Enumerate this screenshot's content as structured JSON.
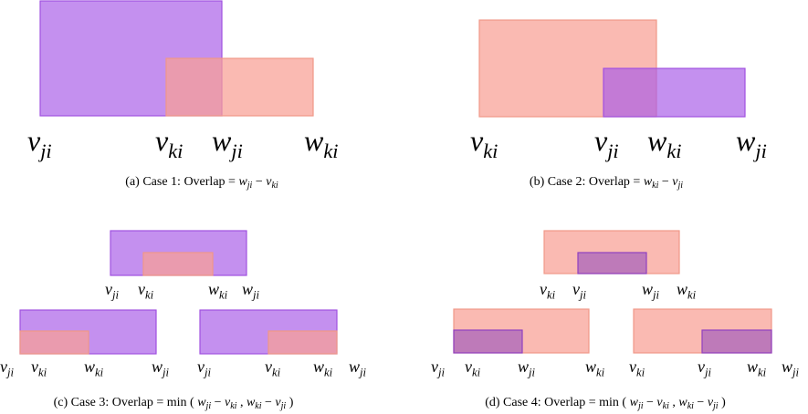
{
  "panels": [
    {
      "labels": [
        {
          "base": "v",
          "sub": "ji"
        },
        {
          "base": "v",
          "sub": "ki"
        },
        {
          "base": "w",
          "sub": "ji"
        },
        {
          "base": "w",
          "sub": "ki"
        }
      ],
      "caption": {
        "prefix": "(a) Case 1: Overlap =",
        "formula": [
          {
            "var": "w",
            "sub": "ji"
          },
          {
            "op": "−"
          },
          {
            "var": "v",
            "sub": "ki"
          }
        ]
      }
    },
    {
      "labels": [
        {
          "base": "v",
          "sub": "ki"
        },
        {
          "base": "v",
          "sub": "ji"
        },
        {
          "base": "w",
          "sub": "ki"
        },
        {
          "base": "w",
          "sub": "ji"
        }
      ],
      "caption": {
        "prefix": "(b) Case 2: Overlap =",
        "formula": [
          {
            "var": "w",
            "sub": "ki"
          },
          {
            "op": "−"
          },
          {
            "var": "v",
            "sub": "ji"
          }
        ]
      }
    },
    {
      "labels": [
        {
          "base": "v",
          "sub": "ji"
        },
        {
          "base": "v",
          "sub": "ki"
        },
        {
          "base": "w",
          "sub": "ki"
        },
        {
          "base": "w",
          "sub": "ji"
        },
        {
          "base": "v",
          "sub": "ji"
        },
        {
          "base": "v",
          "sub": "ki"
        },
        {
          "base": "w",
          "sub": "ki"
        },
        {
          "base": "w",
          "sub": "ji"
        },
        {
          "base": "v",
          "sub": "ji"
        },
        {
          "base": "v",
          "sub": "ki"
        },
        {
          "base": "w",
          "sub": "ki"
        },
        {
          "base": "w",
          "sub": "ji"
        }
      ],
      "caption": {
        "prefix": "(c) Case 3: Overlap =",
        "formula": [
          {
            "op": "min"
          },
          {
            "op": "("
          },
          {
            "var": "w",
            "sub": "ji"
          },
          {
            "op": "−"
          },
          {
            "var": "v",
            "sub": "ki"
          },
          {
            "op": ","
          },
          {
            "var": "w",
            "sub": "ki"
          },
          {
            "op": "−"
          },
          {
            "var": "v",
            "sub": "ji"
          },
          {
            "op": ")"
          }
        ]
      }
    },
    {
      "labels": [
        {
          "base": "v",
          "sub": "ki"
        },
        {
          "base": "v",
          "sub": "ji"
        },
        {
          "base": "w",
          "sub": "ji"
        },
        {
          "base": "w",
          "sub": "ki"
        },
        {
          "base": "v",
          "sub": "ji"
        },
        {
          "base": "v",
          "sub": "ki"
        },
        {
          "base": "w",
          "sub": "ji"
        },
        {
          "base": "w",
          "sub": "ki"
        },
        {
          "base": "v",
          "sub": "ki"
        },
        {
          "base": "v",
          "sub": "ji"
        },
        {
          "base": "w",
          "sub": "ki"
        },
        {
          "base": "w",
          "sub": "ji"
        }
      ],
      "caption": {
        "prefix": "(d) Case 4: Overlap =",
        "formula": [
          {
            "op": "min"
          },
          {
            "op": "("
          },
          {
            "var": "w",
            "sub": "ji"
          },
          {
            "op": "−"
          },
          {
            "var": "v",
            "sub": "ki"
          },
          {
            "op": ","
          },
          {
            "var": "w",
            "sub": "ki"
          },
          {
            "op": "−"
          },
          {
            "var": "v",
            "sub": "ji"
          },
          {
            "op": ")"
          }
        ]
      }
    }
  ]
}
